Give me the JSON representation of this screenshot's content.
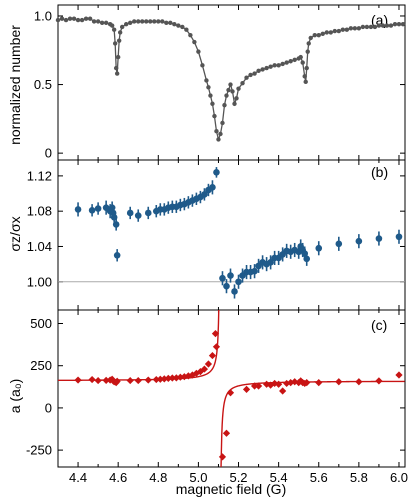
{
  "chart_data": [
    {
      "type": "line",
      "panel_label": "(a)",
      "ylabel": "normalized number",
      "yticks": [
        "0",
        "0.5",
        "1.0"
      ],
      "ylim": [
        -0.05,
        1.08
      ],
      "xlim": [
        4.3,
        6.03
      ],
      "grid": false,
      "colors": {
        "series": "#555555"
      },
      "series": [
        {
          "points": [
            [
              4.3,
              0.97
            ],
            [
              4.32,
              0.98
            ],
            [
              4.34,
              0.97
            ],
            [
              4.36,
              0.98
            ],
            [
              4.38,
              0.98
            ],
            [
              4.4,
              0.97
            ],
            [
              4.42,
              0.97
            ],
            [
              4.44,
              0.98
            ],
            [
              4.46,
              0.98
            ],
            [
              4.48,
              0.96
            ],
            [
              4.5,
              0.96
            ],
            [
              4.52,
              0.95
            ],
            [
              4.54,
              0.95
            ],
            [
              4.56,
              0.94
            ],
            [
              4.57,
              0.93
            ],
            [
              4.58,
              0.9
            ],
            [
              4.585,
              0.8
            ],
            [
              4.59,
              0.62
            ],
            [
              4.595,
              0.58
            ],
            [
              4.6,
              0.7
            ],
            [
              4.605,
              0.82
            ],
            [
              4.61,
              0.88
            ],
            [
              4.62,
              0.92
            ],
            [
              4.64,
              0.94
            ],
            [
              4.66,
              0.95
            ],
            [
              4.68,
              0.96
            ],
            [
              4.7,
              0.96
            ],
            [
              4.72,
              0.96
            ],
            [
              4.74,
              0.96
            ],
            [
              4.76,
              0.96
            ],
            [
              4.78,
              0.96
            ],
            [
              4.8,
              0.96
            ],
            [
              4.82,
              0.96
            ],
            [
              4.84,
              0.95
            ],
            [
              4.86,
              0.95
            ],
            [
              4.88,
              0.94
            ],
            [
              4.9,
              0.93
            ],
            [
              4.92,
              0.92
            ],
            [
              4.94,
              0.9
            ],
            [
              4.96,
              0.86
            ],
            [
              4.98,
              0.81
            ],
            [
              5.0,
              0.74
            ],
            [
              5.02,
              0.64
            ],
            [
              5.04,
              0.53
            ],
            [
              5.05,
              0.48
            ],
            [
              5.06,
              0.42
            ],
            [
              5.07,
              0.36
            ],
            [
              5.08,
              0.27
            ],
            [
              5.09,
              0.16
            ],
            [
              5.1,
              0.1
            ],
            [
              5.11,
              0.14
            ],
            [
              5.12,
              0.22
            ],
            [
              5.13,
              0.35
            ],
            [
              5.14,
              0.42
            ],
            [
              5.15,
              0.46
            ],
            [
              5.16,
              0.5
            ],
            [
              5.17,
              0.45
            ],
            [
              5.18,
              0.36
            ],
            [
              5.19,
              0.4
            ],
            [
              5.2,
              0.47
            ],
            [
              5.22,
              0.51
            ],
            [
              5.24,
              0.55
            ],
            [
              5.26,
              0.57
            ],
            [
              5.28,
              0.58
            ],
            [
              5.3,
              0.6
            ],
            [
              5.32,
              0.61
            ],
            [
              5.34,
              0.62
            ],
            [
              5.36,
              0.63
            ],
            [
              5.38,
              0.64
            ],
            [
              5.4,
              0.64
            ],
            [
              5.42,
              0.65
            ],
            [
              5.44,
              0.66
            ],
            [
              5.46,
              0.67
            ],
            [
              5.48,
              0.68
            ],
            [
              5.5,
              0.69
            ],
            [
              5.51,
              0.7
            ],
            [
              5.52,
              0.66
            ],
            [
              5.53,
              0.56
            ],
            [
              5.535,
              0.52
            ],
            [
              5.54,
              0.62
            ],
            [
              5.545,
              0.74
            ],
            [
              5.55,
              0.8
            ],
            [
              5.56,
              0.84
            ],
            [
              5.58,
              0.86
            ],
            [
              5.6,
              0.86
            ],
            [
              5.62,
              0.87
            ],
            [
              5.64,
              0.88
            ],
            [
              5.66,
              0.88
            ],
            [
              5.68,
              0.89
            ],
            [
              5.7,
              0.89
            ],
            [
              5.72,
              0.9
            ],
            [
              5.74,
              0.9
            ],
            [
              5.76,
              0.91
            ],
            [
              5.78,
              0.91
            ],
            [
              5.8,
              0.91
            ],
            [
              5.82,
              0.92
            ],
            [
              5.84,
              0.92
            ],
            [
              5.86,
              0.92
            ],
            [
              5.88,
              0.92
            ],
            [
              5.9,
              0.93
            ],
            [
              5.92,
              0.93
            ],
            [
              5.94,
              0.93
            ],
            [
              5.96,
              0.93
            ],
            [
              5.98,
              0.94
            ],
            [
              6.0,
              0.94
            ],
            [
              6.02,
              0.94
            ]
          ]
        }
      ]
    },
    {
      "type": "scatter",
      "panel_label": "(b)",
      "ylabel": "σz/σx",
      "yticks": [
        "1.00",
        "1.04",
        "1.08",
        "1.12"
      ],
      "ylim": [
        0.968,
        1.138
      ],
      "xlim": [
        4.3,
        6.03
      ],
      "reference_line": 1.0,
      "grid": false,
      "colors": {
        "series": "#1f5a8a",
        "reference": "#aaaaaa"
      },
      "series": [
        {
          "points": [
            [
              4.4,
              1.082,
              0.008
            ],
            [
              4.47,
              1.081,
              0.007
            ],
            [
              4.5,
              1.083,
              0.007
            ],
            [
              4.54,
              1.084,
              0.008
            ],
            [
              4.56,
              1.08,
              0.008
            ],
            [
              4.57,
              1.084,
              0.007
            ],
            [
              4.575,
              1.078,
              0.006
            ],
            [
              4.58,
              1.073,
              0.006
            ],
            [
              4.59,
              1.065,
              0.007
            ],
            [
              4.595,
              1.03,
              0.007
            ],
            [
              4.66,
              1.078,
              0.007
            ],
            [
              4.7,
              1.075,
              0.007
            ],
            [
              4.75,
              1.078,
              0.007
            ],
            [
              4.79,
              1.08,
              0.007
            ],
            [
              4.81,
              1.082,
              0.007
            ],
            [
              4.83,
              1.082,
              0.007
            ],
            [
              4.85,
              1.084,
              0.007
            ],
            [
              4.87,
              1.085,
              0.007
            ],
            [
              4.89,
              1.085,
              0.007
            ],
            [
              4.91,
              1.087,
              0.007
            ],
            [
              4.93,
              1.088,
              0.007
            ],
            [
              4.95,
              1.09,
              0.007
            ],
            [
              4.97,
              1.092,
              0.007
            ],
            [
              4.99,
              1.094,
              0.007
            ],
            [
              5.01,
              1.096,
              0.007
            ],
            [
              5.03,
              1.099,
              0.007
            ],
            [
              5.05,
              1.104,
              0.007
            ],
            [
              5.07,
              1.107,
              0.008
            ],
            [
              5.09,
              1.124,
              0.006
            ],
            [
              5.12,
              1.004,
              0.008
            ],
            [
              5.14,
              0.995,
              0.008
            ],
            [
              5.16,
              1.007,
              0.008
            ],
            [
              5.18,
              0.989,
              0.008
            ],
            [
              5.2,
              1.0,
              0.008
            ],
            [
              5.22,
              1.007,
              0.008
            ],
            [
              5.24,
              1.011,
              0.008
            ],
            [
              5.26,
              1.011,
              0.008
            ],
            [
              5.28,
              1.012,
              0.008
            ],
            [
              5.3,
              1.018,
              0.008
            ],
            [
              5.32,
              1.022,
              0.008
            ],
            [
              5.34,
              1.02,
              0.008
            ],
            [
              5.36,
              1.022,
              0.008
            ],
            [
              5.38,
              1.027,
              0.008
            ],
            [
              5.4,
              1.027,
              0.008
            ],
            [
              5.42,
              1.031,
              0.008
            ],
            [
              5.44,
              1.035,
              0.008
            ],
            [
              5.46,
              1.034,
              0.008
            ],
            [
              5.48,
              1.036,
              0.008
            ],
            [
              5.5,
              1.034,
              0.008
            ],
            [
              5.51,
              1.04,
              0.008
            ],
            [
              5.52,
              1.036,
              0.008
            ],
            [
              5.53,
              1.032,
              0.008
            ],
            [
              5.54,
              1.026,
              0.008
            ],
            [
              5.6,
              1.038,
              0.008
            ],
            [
              5.7,
              1.043,
              0.008
            ],
            [
              5.8,
              1.046,
              0.008
            ],
            [
              5.9,
              1.049,
              0.008
            ],
            [
              6.0,
              1.051,
              0.008
            ]
          ]
        }
      ]
    },
    {
      "type": "scatter",
      "panel_label": "(c)",
      "ylabel": "a (a₀)",
      "yticks": [
        "-250",
        "0",
        "250",
        "500"
      ],
      "ylim": [
        -350,
        580
      ],
      "xlim": [
        4.3,
        6.03
      ],
      "xticks": [
        "4.4",
        "4.6",
        "4.8",
        "5.0",
        "5.2",
        "5.4",
        "5.6",
        "5.8",
        "6.0"
      ],
      "xlabel": "magnetic field (G)",
      "grid": false,
      "colors": {
        "series": "#c81414"
      },
      "fit": {
        "a_bg": 160,
        "delta": 0.017,
        "B0": 5.108
      },
      "series": [
        {
          "points": [
            [
              4.4,
              165
            ],
            [
              4.47,
              168
            ],
            [
              4.5,
              162
            ],
            [
              4.54,
              163
            ],
            [
              4.56,
              165
            ],
            [
              4.57,
              170
            ],
            [
              4.575,
              160
            ],
            [
              4.58,
              155
            ],
            [
              4.59,
              150
            ],
            [
              4.595,
              158
            ],
            [
              4.66,
              162
            ],
            [
              4.7,
              162
            ],
            [
              4.75,
              165
            ],
            [
              4.79,
              168
            ],
            [
              4.81,
              170
            ],
            [
              4.83,
              172
            ],
            [
              4.85,
              175
            ],
            [
              4.87,
              177
            ],
            [
              4.89,
              178
            ],
            [
              4.91,
              182
            ],
            [
              4.93,
              185
            ],
            [
              4.95,
              190
            ],
            [
              4.97,
              195
            ],
            [
              4.99,
              205
            ],
            [
              5.01,
              215
            ],
            [
              5.03,
              230
            ],
            [
              5.05,
              260
            ],
            [
              5.07,
              310
            ],
            [
              5.085,
              440
            ],
            [
              5.09,
              362
            ],
            [
              5.12,
              -290
            ],
            [
              5.14,
              -150
            ],
            [
              5.16,
              90
            ],
            [
              5.24,
              110
            ],
            [
              5.28,
              130
            ],
            [
              5.3,
              130
            ],
            [
              5.34,
              140
            ],
            [
              5.36,
              135
            ],
            [
              5.38,
              145
            ],
            [
              5.4,
              140
            ],
            [
              5.42,
              100
            ],
            [
              5.44,
              145
            ],
            [
              5.46,
              150
            ],
            [
              5.48,
              155
            ],
            [
              5.5,
              150
            ],
            [
              5.51,
              160
            ],
            [
              5.52,
              150
            ],
            [
              5.53,
              145
            ],
            [
              5.54,
              150
            ],
            [
              5.6,
              150
            ],
            [
              5.7,
              155
            ],
            [
              5.8,
              155
            ],
            [
              5.9,
              160
            ],
            [
              6.0,
              195
            ]
          ]
        }
      ]
    }
  ]
}
